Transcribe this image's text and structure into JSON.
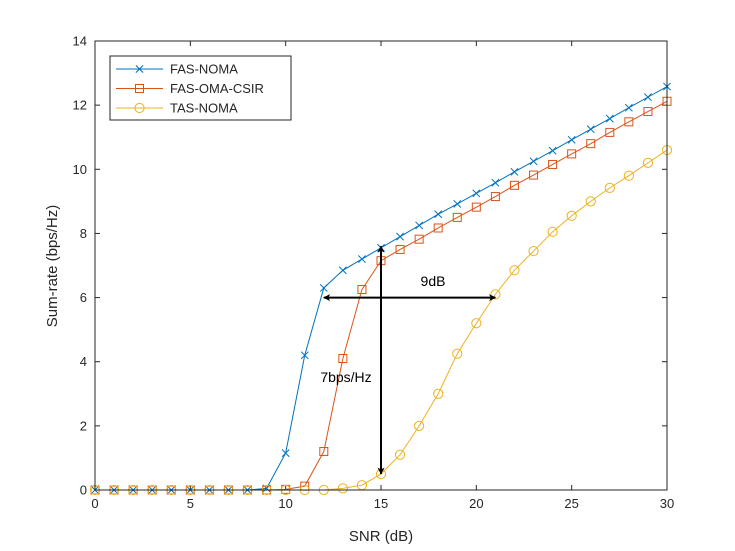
{
  "chart_data": {
    "type": "line",
    "title": "",
    "xlabel": "SNR (dB)",
    "ylabel": "Sum-rate (bps/Hz)",
    "xlim": [
      0,
      30
    ],
    "ylim": [
      0,
      14
    ],
    "xticks": [
      0,
      5,
      10,
      15,
      20,
      25,
      30
    ],
    "yticks": [
      0,
      2,
      4,
      6,
      8,
      10,
      12,
      14
    ],
    "grid": false,
    "legend_position": "top-left",
    "x": [
      0,
      1,
      2,
      3,
      4,
      5,
      6,
      7,
      8,
      9,
      10,
      11,
      12,
      13,
      14,
      15,
      16,
      17,
      18,
      19,
      20,
      21,
      22,
      23,
      24,
      25,
      26,
      27,
      28,
      29,
      30
    ],
    "series": [
      {
        "name": "FAS-NOMA",
        "color": "#0072BD",
        "marker": "x",
        "values": [
          0,
          0,
          0,
          0,
          0,
          0,
          0,
          0,
          0,
          0.05,
          1.15,
          4.2,
          6.3,
          6.85,
          7.2,
          7.55,
          7.9,
          8.25,
          8.6,
          8.92,
          9.25,
          9.58,
          9.92,
          10.25,
          10.58,
          10.92,
          11.25,
          11.58,
          11.92,
          12.25,
          12.58
        ]
      },
      {
        "name": "FAS-OMA-CSIR",
        "color": "#D95319",
        "marker": "square",
        "values": [
          0,
          0,
          0,
          0,
          0,
          0,
          0,
          0,
          0,
          0,
          0.02,
          0.12,
          1.2,
          4.1,
          6.25,
          7.15,
          7.5,
          7.82,
          8.17,
          8.5,
          8.82,
          9.15,
          9.5,
          9.82,
          10.15,
          10.48,
          10.8,
          11.15,
          11.48,
          11.8,
          12.12
        ]
      },
      {
        "name": "TAS-NOMA",
        "color": "#EDB120",
        "marker": "circle",
        "values": [
          0,
          0,
          0,
          0,
          0,
          0,
          0,
          0,
          0,
          0,
          0,
          0,
          0,
          0.05,
          0.15,
          0.5,
          1.1,
          2.0,
          3.0,
          4.25,
          5.2,
          6.1,
          6.85,
          7.45,
          8.05,
          8.55,
          9.0,
          9.42,
          9.8,
          10.2,
          10.6
        ]
      }
    ],
    "annotations": {
      "horizontal_gap_label": "9dB",
      "vertical_gap_label": "7bps/Hz",
      "horizontal_arrow": {
        "x_start": 12,
        "x_end": 21,
        "y": 6.0
      },
      "vertical_arrow": {
        "x": 15,
        "y_start": 0.5,
        "y_end": 7.6
      }
    }
  }
}
